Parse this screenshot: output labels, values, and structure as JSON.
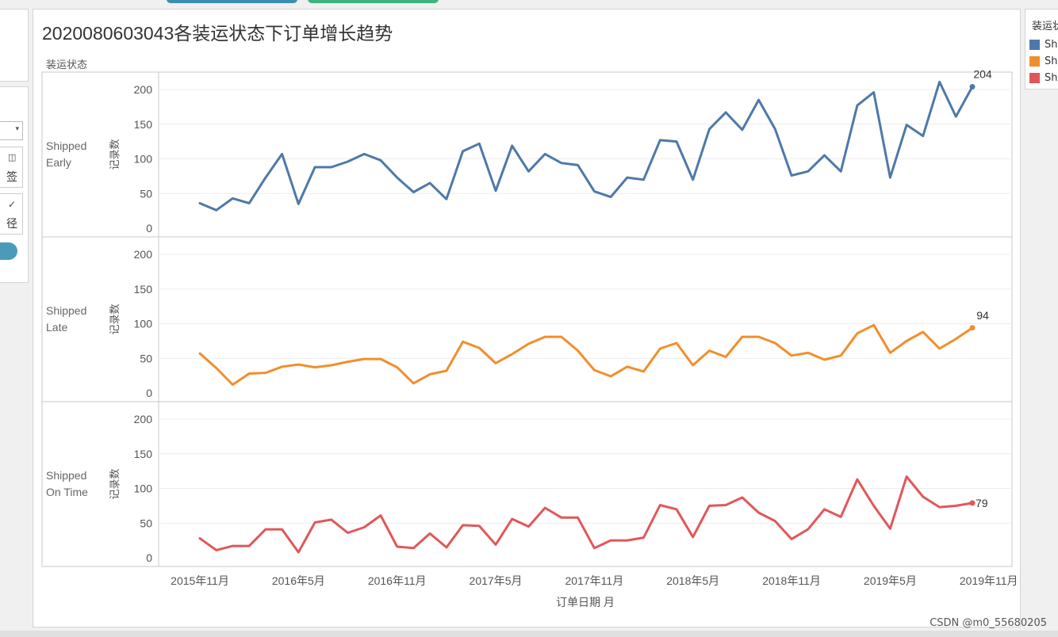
{
  "left_panel": {
    "label_a": "签",
    "label_b": "径"
  },
  "legend": {
    "title": "装运状态",
    "items": [
      {
        "label": "Shipped Early",
        "color": "#4e79a7"
      },
      {
        "label": "Shipped Late",
        "color": "#f28e2b"
      },
      {
        "label": "Shipped On Time",
        "color": "#e15759"
      }
    ]
  },
  "watermark": "CSDN @m0_55680205",
  "chart_data": {
    "type": "line",
    "title": "2020080603043各装运状态下订单增长趋势",
    "facet_label": "装运状态",
    "xlabel": "订单日期 月",
    "ylabel": "记录数",
    "ylim": [
      0,
      220
    ],
    "yticks": [
      0,
      50,
      100,
      150,
      200
    ],
    "xticks": [
      "2015年11月",
      "2016年5月",
      "2016年11月",
      "2017年5月",
      "2017年11月",
      "2018年5月",
      "2018年11月",
      "2019年5月",
      "2019年11月"
    ],
    "xtick_indices": [
      0,
      6,
      12,
      18,
      24,
      30,
      36,
      42,
      48
    ],
    "n_points": 48,
    "series": [
      {
        "name": "Shipped Early",
        "row_label": [
          "Shipped",
          "Early"
        ],
        "color": "#4e79a7",
        "end_label": "204",
        "values": [
          36,
          26,
          43,
          36,
          73,
          107,
          35,
          88,
          88,
          96,
          107,
          98,
          73,
          52,
          65,
          42,
          111,
          122,
          54,
          119,
          82,
          107,
          94,
          91,
          53,
          45,
          73,
          70,
          127,
          125,
          70,
          143,
          167,
          142,
          185,
          143,
          76,
          82,
          105,
          82,
          177,
          196,
          73,
          149,
          133,
          211,
          161,
          204
        ]
      },
      {
        "name": "Shipped Late",
        "row_label": [
          "Shipped",
          "Late"
        ],
        "color": "#f28e2b",
        "end_label": "94",
        "values": [
          57,
          36,
          12,
          28,
          29,
          38,
          41,
          37,
          40,
          45,
          49,
          49,
          37,
          14,
          27,
          32,
          74,
          65,
          43,
          56,
          71,
          81,
          81,
          61,
          33,
          24,
          38,
          31,
          64,
          72,
          40,
          61,
          52,
          81,
          81,
          72,
          54,
          58,
          48,
          54,
          86,
          98,
          58,
          75,
          88,
          64,
          78,
          94
        ]
      },
      {
        "name": "Shipped On Time",
        "row_label": [
          "Shipped",
          "On Time"
        ],
        "color": "#e15759",
        "end_label": "79",
        "values": [
          28,
          11,
          17,
          17,
          41,
          41,
          8,
          51,
          55,
          36,
          44,
          61,
          16,
          14,
          35,
          15,
          47,
          46,
          19,
          56,
          45,
          72,
          58,
          58,
          14,
          25,
          25,
          29,
          76,
          70,
          30,
          75,
          76,
          87,
          65,
          53,
          27,
          41,
          70,
          59,
          113,
          75,
          42,
          117,
          88,
          73,
          75,
          79
        ]
      }
    ]
  }
}
